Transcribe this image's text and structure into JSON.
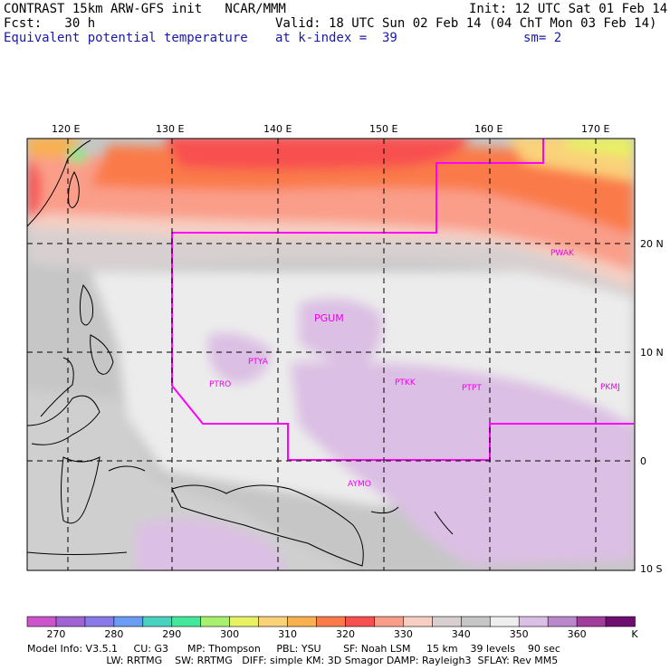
{
  "header": {
    "line1_left": "CONTRAST 15km ARW-GFS init   NCAR/MMM",
    "line1_right": "Init: 12 UTC Sat 01 Feb 14",
    "line2_left": "Fcst:   30 h",
    "line2_right": "Valid: 18 UTC Sun 02 Feb 14 (04 ChT Mon 03 Feb 14)",
    "line3_left": "Equivalent potential temperature",
    "line3_mid": "at k-index =  39",
    "line3_right": "sm= 2"
  },
  "axes": {
    "lon_labels": [
      "120 E",
      "130 E",
      "140 E",
      "150 E",
      "160 E",
      "170 E"
    ],
    "lat_labels": [
      "20 N",
      "10 N",
      "0",
      "10 S"
    ]
  },
  "stations": [
    "PGUM",
    "PTYA",
    "PTRO",
    "PTKK",
    "PTPT",
    "PKMJ",
    "PWAK",
    "AYMO"
  ],
  "colorbar": {
    "labels": [
      "270",
      "280",
      "290",
      "300",
      "310",
      "320",
      "330",
      "340",
      "350",
      "360",
      "K"
    ],
    "colors": [
      "#cc55cc",
      "#a064d2",
      "#8a7ae8",
      "#6a9cf2",
      "#4ad2c0",
      "#44e89a",
      "#a8f070",
      "#e8f064",
      "#fad27a",
      "#f8b050",
      "#fa7a4a",
      "#f85050",
      "#fa9e8a",
      "#f6cfc2",
      "#d8d0d0",
      "#c6c6c6",
      "#eeeeee",
      "#dcbfe4",
      "#bb88cc",
      "#a03c9a",
      "#6e0e6e"
    ]
  },
  "footer": {
    "line1": "Model Info: V3.5.1     CU: G3      MP: Thompson     PBL: YSU       SF: Noah LSM     15 km    39 levels    90 sec",
    "line2": "                         LW: RRTMG    SW: RRTMG   DIFF: simple KM: 3D Smagor DAMP: Rayleigh3  SFLAY: Rev MM5"
  }
}
